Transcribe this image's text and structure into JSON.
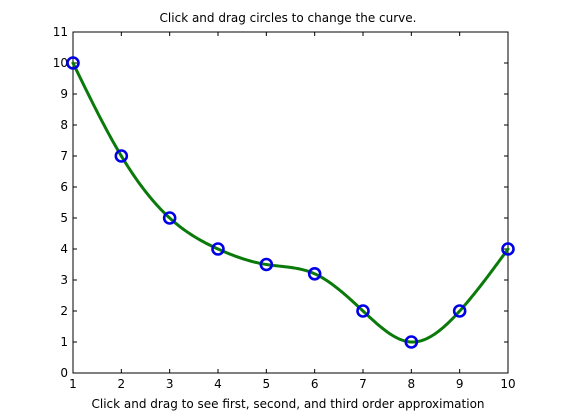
{
  "title": "Click and drag circles to change the curve.",
  "xlabel": "Click and drag to see first, second, and third order approximation",
  "chart_data": {
    "type": "line",
    "title": "Click and drag circles to change the curve.",
    "xlabel": "Click and drag to see first, second, and third order approximation",
    "ylabel": "",
    "xlim": [
      1,
      10
    ],
    "ylim": [
      0,
      11
    ],
    "xticks": [
      1,
      2,
      3,
      4,
      5,
      6,
      7,
      8,
      9,
      10
    ],
    "yticks": [
      0,
      1,
      2,
      3,
      4,
      5,
      6,
      7,
      8,
      9,
      10,
      11
    ],
    "grid": false,
    "series": [
      {
        "style": "curve",
        "color": "#0a7a0a",
        "x": [
          1,
          2,
          3,
          4,
          5,
          6,
          7,
          8,
          9,
          10
        ],
        "y": [
          10,
          7,
          5,
          4,
          3.5,
          3.2,
          2,
          1,
          2,
          4
        ]
      },
      {
        "style": "markers",
        "marker": "circle",
        "color": "#0000e6",
        "x": [
          1,
          2,
          3,
          4,
          5,
          6,
          7,
          8,
          9,
          10
        ],
        "y": [
          10,
          7,
          5,
          4,
          3.5,
          3.2,
          2,
          1,
          2,
          4
        ]
      }
    ]
  }
}
